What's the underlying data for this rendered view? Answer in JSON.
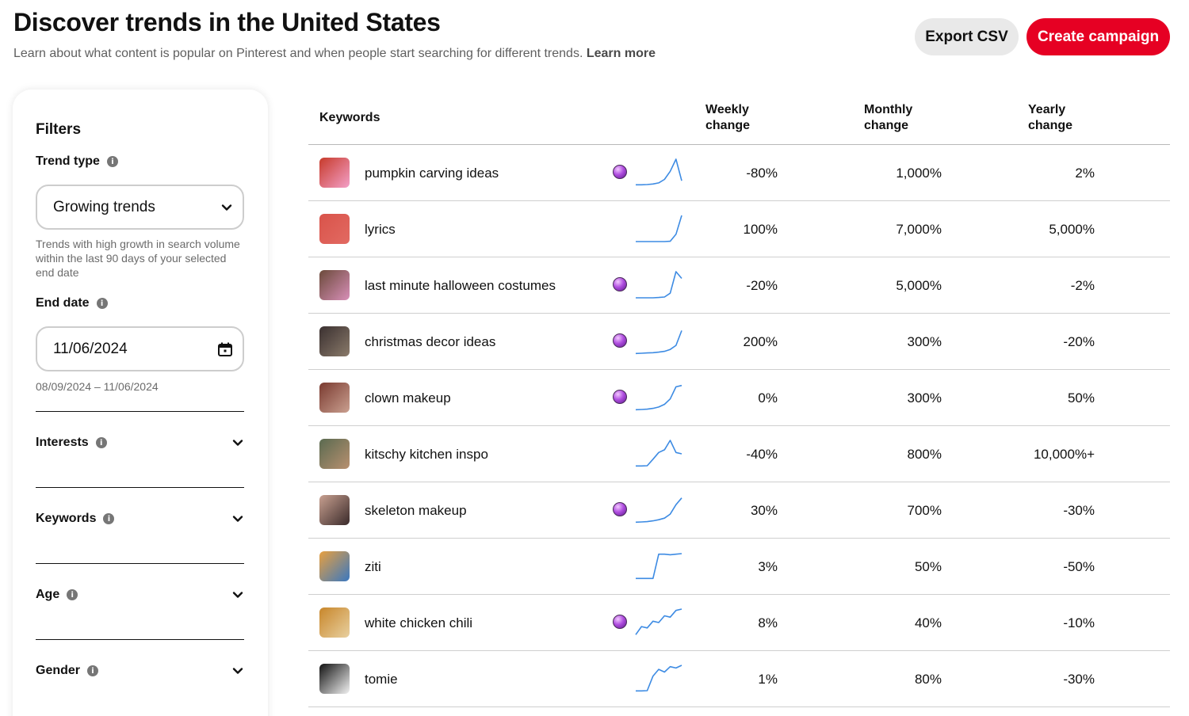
{
  "header": {
    "title": "Discover trends in the United States",
    "subtitle": "Learn about what content is popular on Pinterest and when people start searching for different trends.",
    "learn_more": "Learn more"
  },
  "actions": {
    "export_label": "Export CSV",
    "create_label": "Create campaign"
  },
  "colors": {
    "brand_red": "#e60023",
    "sparkline_blue": "#3d8be3",
    "secondary_button": "#e9e9e9"
  },
  "filters": {
    "title": "Filters",
    "trend_type": {
      "label": "Trend type",
      "value": "Growing trends",
      "help": "Trends with high growth in search volume within the last 90 days of your selected end date"
    },
    "end_date": {
      "label": "End date",
      "value": "11/06/2024",
      "range": "08/09/2024 – 11/06/2024"
    },
    "sections": [
      {
        "label": "Interests"
      },
      {
        "label": "Keywords"
      },
      {
        "label": "Age"
      },
      {
        "label": "Gender"
      }
    ]
  },
  "table": {
    "headers": {
      "keywords": "Keywords",
      "weekly": [
        "Weekly",
        "change"
      ],
      "monthly": [
        "Monthly",
        "change"
      ],
      "yearly": [
        "Yearly",
        "change"
      ]
    },
    "rows": [
      {
        "keyword": "pumpkin carving ideas",
        "orb": true,
        "weekly": "-80%",
        "monthly": "1,000%",
        "yearly": "2%",
        "thumb": [
          "#c73a2a",
          "#f3a0c8"
        ],
        "spark": [
          0.05,
          0.05,
          0.06,
          0.08,
          0.12,
          0.25,
          0.55,
          1.0,
          0.2
        ]
      },
      {
        "keyword": "lyrics",
        "orb": false,
        "weekly": "100%",
        "monthly": "7,000%",
        "yearly": "5,000%",
        "thumb": [
          "#d9534a",
          "#e26a62"
        ],
        "spark": [
          0.03,
          0.03,
          0.03,
          0.03,
          0.03,
          0.03,
          0.04,
          0.3,
          1.0
        ]
      },
      {
        "keyword": "last minute halloween costumes",
        "orb": true,
        "weekly": "-20%",
        "monthly": "5,000%",
        "yearly": "-2%",
        "thumb": [
          "#6b4a3a",
          "#d88fb8"
        ],
        "spark": [
          0.03,
          0.03,
          0.03,
          0.03,
          0.04,
          0.06,
          0.2,
          1.0,
          0.75
        ]
      },
      {
        "keyword": "christmas decor ideas",
        "orb": true,
        "weekly": "200%",
        "monthly": "300%",
        "yearly": "-20%",
        "thumb": [
          "#3a3030",
          "#8a7a6a"
        ],
        "spark": [
          0.05,
          0.06,
          0.07,
          0.08,
          0.1,
          0.13,
          0.2,
          0.35,
          0.9
        ]
      },
      {
        "keyword": "clown makeup",
        "orb": true,
        "weekly": "0%",
        "monthly": "300%",
        "yearly": "50%",
        "thumb": [
          "#7a3a30",
          "#caa090"
        ],
        "spark": [
          0.05,
          0.06,
          0.07,
          0.1,
          0.15,
          0.25,
          0.45,
          0.9,
          0.95
        ]
      },
      {
        "keyword": "kitschy kitchen inspo",
        "orb": false,
        "weekly": "-40%",
        "monthly": "800%",
        "yearly": "10,000%+",
        "thumb": [
          "#5a6a50",
          "#b89070"
        ],
        "spark": [
          0.05,
          0.05,
          0.06,
          0.3,
          0.55,
          0.65,
          1.0,
          0.55,
          0.5
        ]
      },
      {
        "keyword": "skeleton makeup",
        "orb": true,
        "weekly": "30%",
        "monthly": "700%",
        "yearly": "-30%",
        "thumb": [
          "#c8a090",
          "#3a2a2a"
        ],
        "spark": [
          0.05,
          0.06,
          0.07,
          0.1,
          0.14,
          0.2,
          0.35,
          0.7,
          0.95
        ]
      },
      {
        "keyword": "ziti",
        "orb": false,
        "weekly": "3%",
        "monthly": "50%",
        "yearly": "-50%",
        "thumb": [
          "#e8a040",
          "#3a78c0"
        ],
        "spark": [
          0.05,
          0.05,
          0.05,
          0.05,
          0.95,
          0.95,
          0.93,
          0.95,
          0.97
        ]
      },
      {
        "keyword": "white chicken chili",
        "orb": true,
        "weekly": "8%",
        "monthly": "40%",
        "yearly": "-10%",
        "thumb": [
          "#c8862a",
          "#e8d0a0"
        ],
        "spark": [
          0.05,
          0.35,
          0.3,
          0.55,
          0.5,
          0.75,
          0.7,
          0.95,
          1.0
        ]
      },
      {
        "keyword": "tomie",
        "orb": false,
        "weekly": "1%",
        "monthly": "80%",
        "yearly": "-30%",
        "thumb": [
          "#111111",
          "#f2f2f2"
        ],
        "spark": [
          0.05,
          0.05,
          0.06,
          0.6,
          0.85,
          0.75,
          0.95,
          0.9,
          1.0
        ]
      }
    ]
  }
}
